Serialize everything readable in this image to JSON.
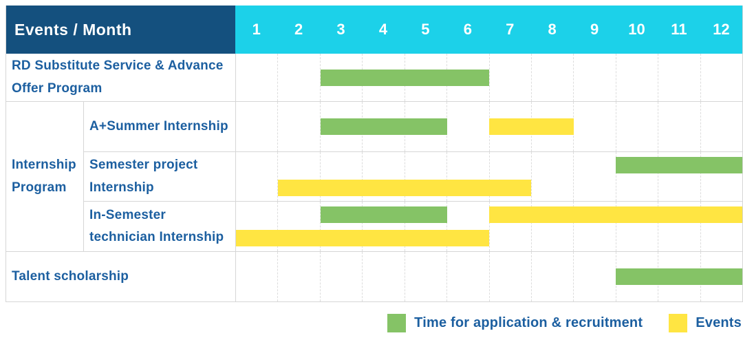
{
  "header": {
    "title": "Events / Month",
    "months": [
      "1",
      "2",
      "3",
      "4",
      "5",
      "6",
      "7",
      "8",
      "9",
      "10",
      "11",
      "12"
    ]
  },
  "group_label": "Internship Program",
  "legend": {
    "items": [
      {
        "series": "application",
        "label": "Time for application & recruitment"
      },
      {
        "series": "events",
        "label": "Events"
      }
    ]
  },
  "colors": {
    "header_bg": "#14507e",
    "months_bg": "#1cd1e9",
    "header_text": "#ffffff",
    "label_text": "#1c5fa0",
    "application_green": "#85c366",
    "events_yellow": "#ffe542",
    "grid_line": "#dcdcdc",
    "border": "#d6d6d6"
  },
  "chart_data": {
    "type": "gantt",
    "title": "Events / Month",
    "x_axis": {
      "label": "Month",
      "ticks": [
        1,
        2,
        3,
        4,
        5,
        6,
        7,
        8,
        9,
        10,
        11,
        12
      ],
      "range": [
        1,
        12
      ]
    },
    "series": {
      "application": {
        "label": "Time for application & recruitment",
        "color": "#85c366"
      },
      "events": {
        "label": "Events",
        "color": "#ffe542"
      }
    },
    "rows": [
      {
        "group": null,
        "label": "RD Substitute Service & Advance Offer Program",
        "lines": 1,
        "bars": [
          {
            "series": "application",
            "start_month": 3,
            "end_month": 6,
            "line": 0
          }
        ]
      },
      {
        "group": "Internship Program",
        "label": "A+Summer Internship",
        "lines": 1,
        "bars": [
          {
            "series": "application",
            "start_month": 3,
            "end_month": 5,
            "line": 0
          },
          {
            "series": "events",
            "start_month": 7,
            "end_month": 8,
            "line": 0
          }
        ]
      },
      {
        "group": "Internship Program",
        "label": "Semester project Internship",
        "lines": 2,
        "bars": [
          {
            "series": "application",
            "start_month": 10,
            "end_month": 12,
            "line": 0
          },
          {
            "series": "events",
            "start_month": 2,
            "end_month": 7,
            "line": 1
          }
        ]
      },
      {
        "group": "Internship Program",
        "label": "In-Semester technician Internship",
        "lines": 2,
        "bars": [
          {
            "series": "application",
            "start_month": 3,
            "end_month": 5,
            "line": 0
          },
          {
            "series": "events",
            "start_month": 7,
            "end_month": 12,
            "line": 0
          },
          {
            "series": "events",
            "start_month": 1,
            "end_month": 6,
            "line": 1
          }
        ]
      },
      {
        "group": null,
        "label": "Talent scholarship",
        "lines": 1,
        "bars": [
          {
            "series": "application",
            "start_month": 10,
            "end_month": 12,
            "line": 0
          }
        ]
      }
    ]
  }
}
